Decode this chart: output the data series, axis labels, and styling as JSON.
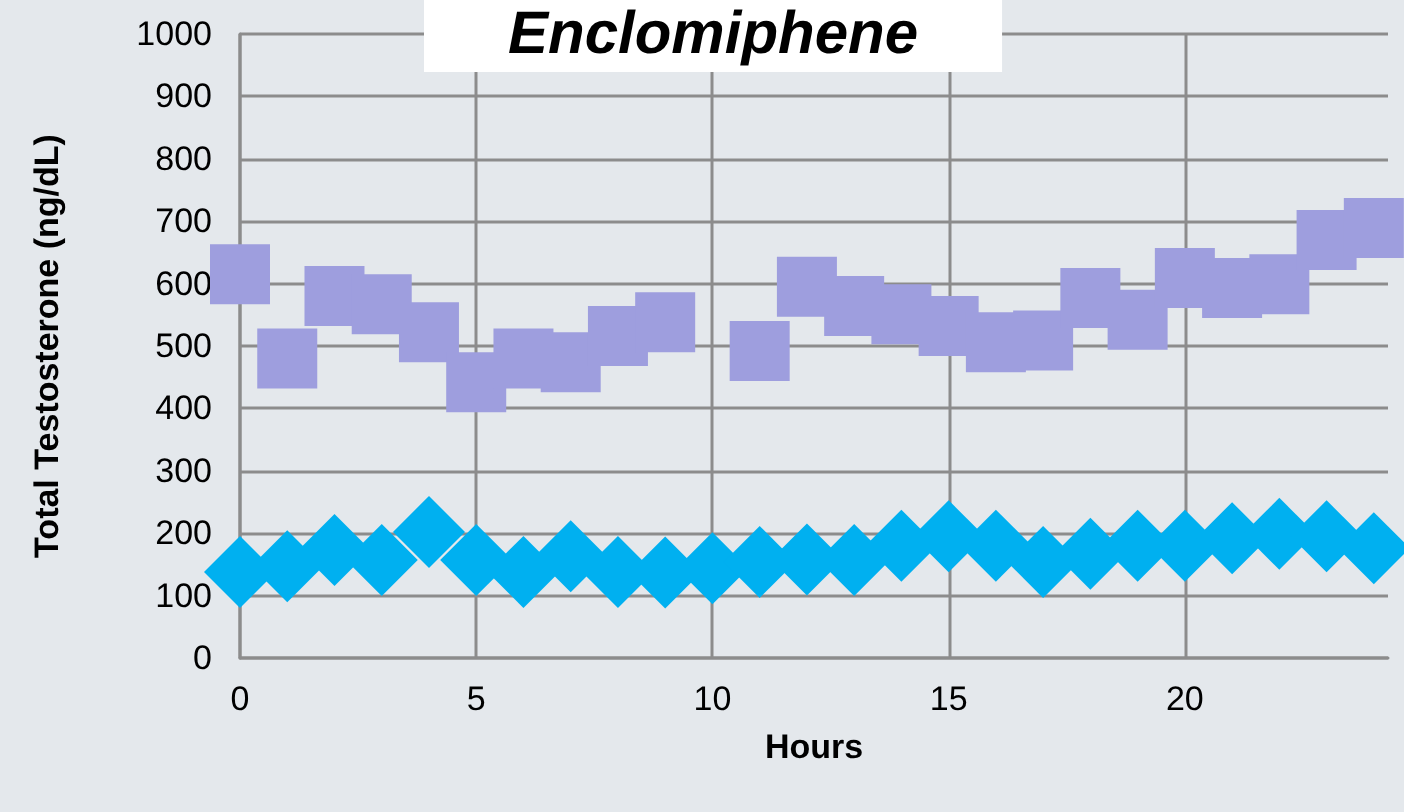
{
  "chart_data": {
    "type": "scatter",
    "title": "Enclomiphene",
    "xlabel": "Hours",
    "ylabel": "Total Testosterone (ng/dL)",
    "xlim": [
      0,
      24.3
    ],
    "xticks": [
      0,
      5,
      10,
      15,
      20
    ],
    "ylim": [
      0,
      1000
    ],
    "yticks": [
      0,
      100,
      200,
      300,
      400,
      500,
      600,
      700,
      800,
      900,
      1000
    ],
    "grid": true,
    "series": [
      {
        "color": "#9e9ede",
        "marker": "square",
        "x": [
          0,
          1,
          2,
          3,
          4,
          5,
          6,
          7,
          8,
          9,
          11,
          12,
          13,
          14,
          15,
          16,
          17,
          18,
          19,
          20,
          21,
          22,
          23,
          24
        ],
        "values": [
          615,
          480,
          580,
          567,
          522,
          442,
          480,
          474,
          516,
          538,
          492,
          595,
          564,
          551,
          532,
          506,
          509,
          577,
          542,
          609,
          593,
          599,
          670,
          689
        ]
      },
      {
        "color": "#00b0f0",
        "marker": "diamond",
        "x": [
          0,
          1,
          2,
          3,
          4,
          5,
          6,
          7,
          8,
          9,
          10,
          11,
          12,
          13,
          14,
          15,
          16,
          17,
          18,
          19,
          20,
          21,
          22,
          23,
          24
        ],
        "values": [
          138,
          147,
          173,
          157,
          202,
          157,
          138,
          163,
          138,
          137,
          144,
          154,
          158,
          157,
          180,
          195,
          180,
          154,
          167,
          180,
          180,
          192,
          199,
          195,
          176
        ]
      }
    ]
  }
}
